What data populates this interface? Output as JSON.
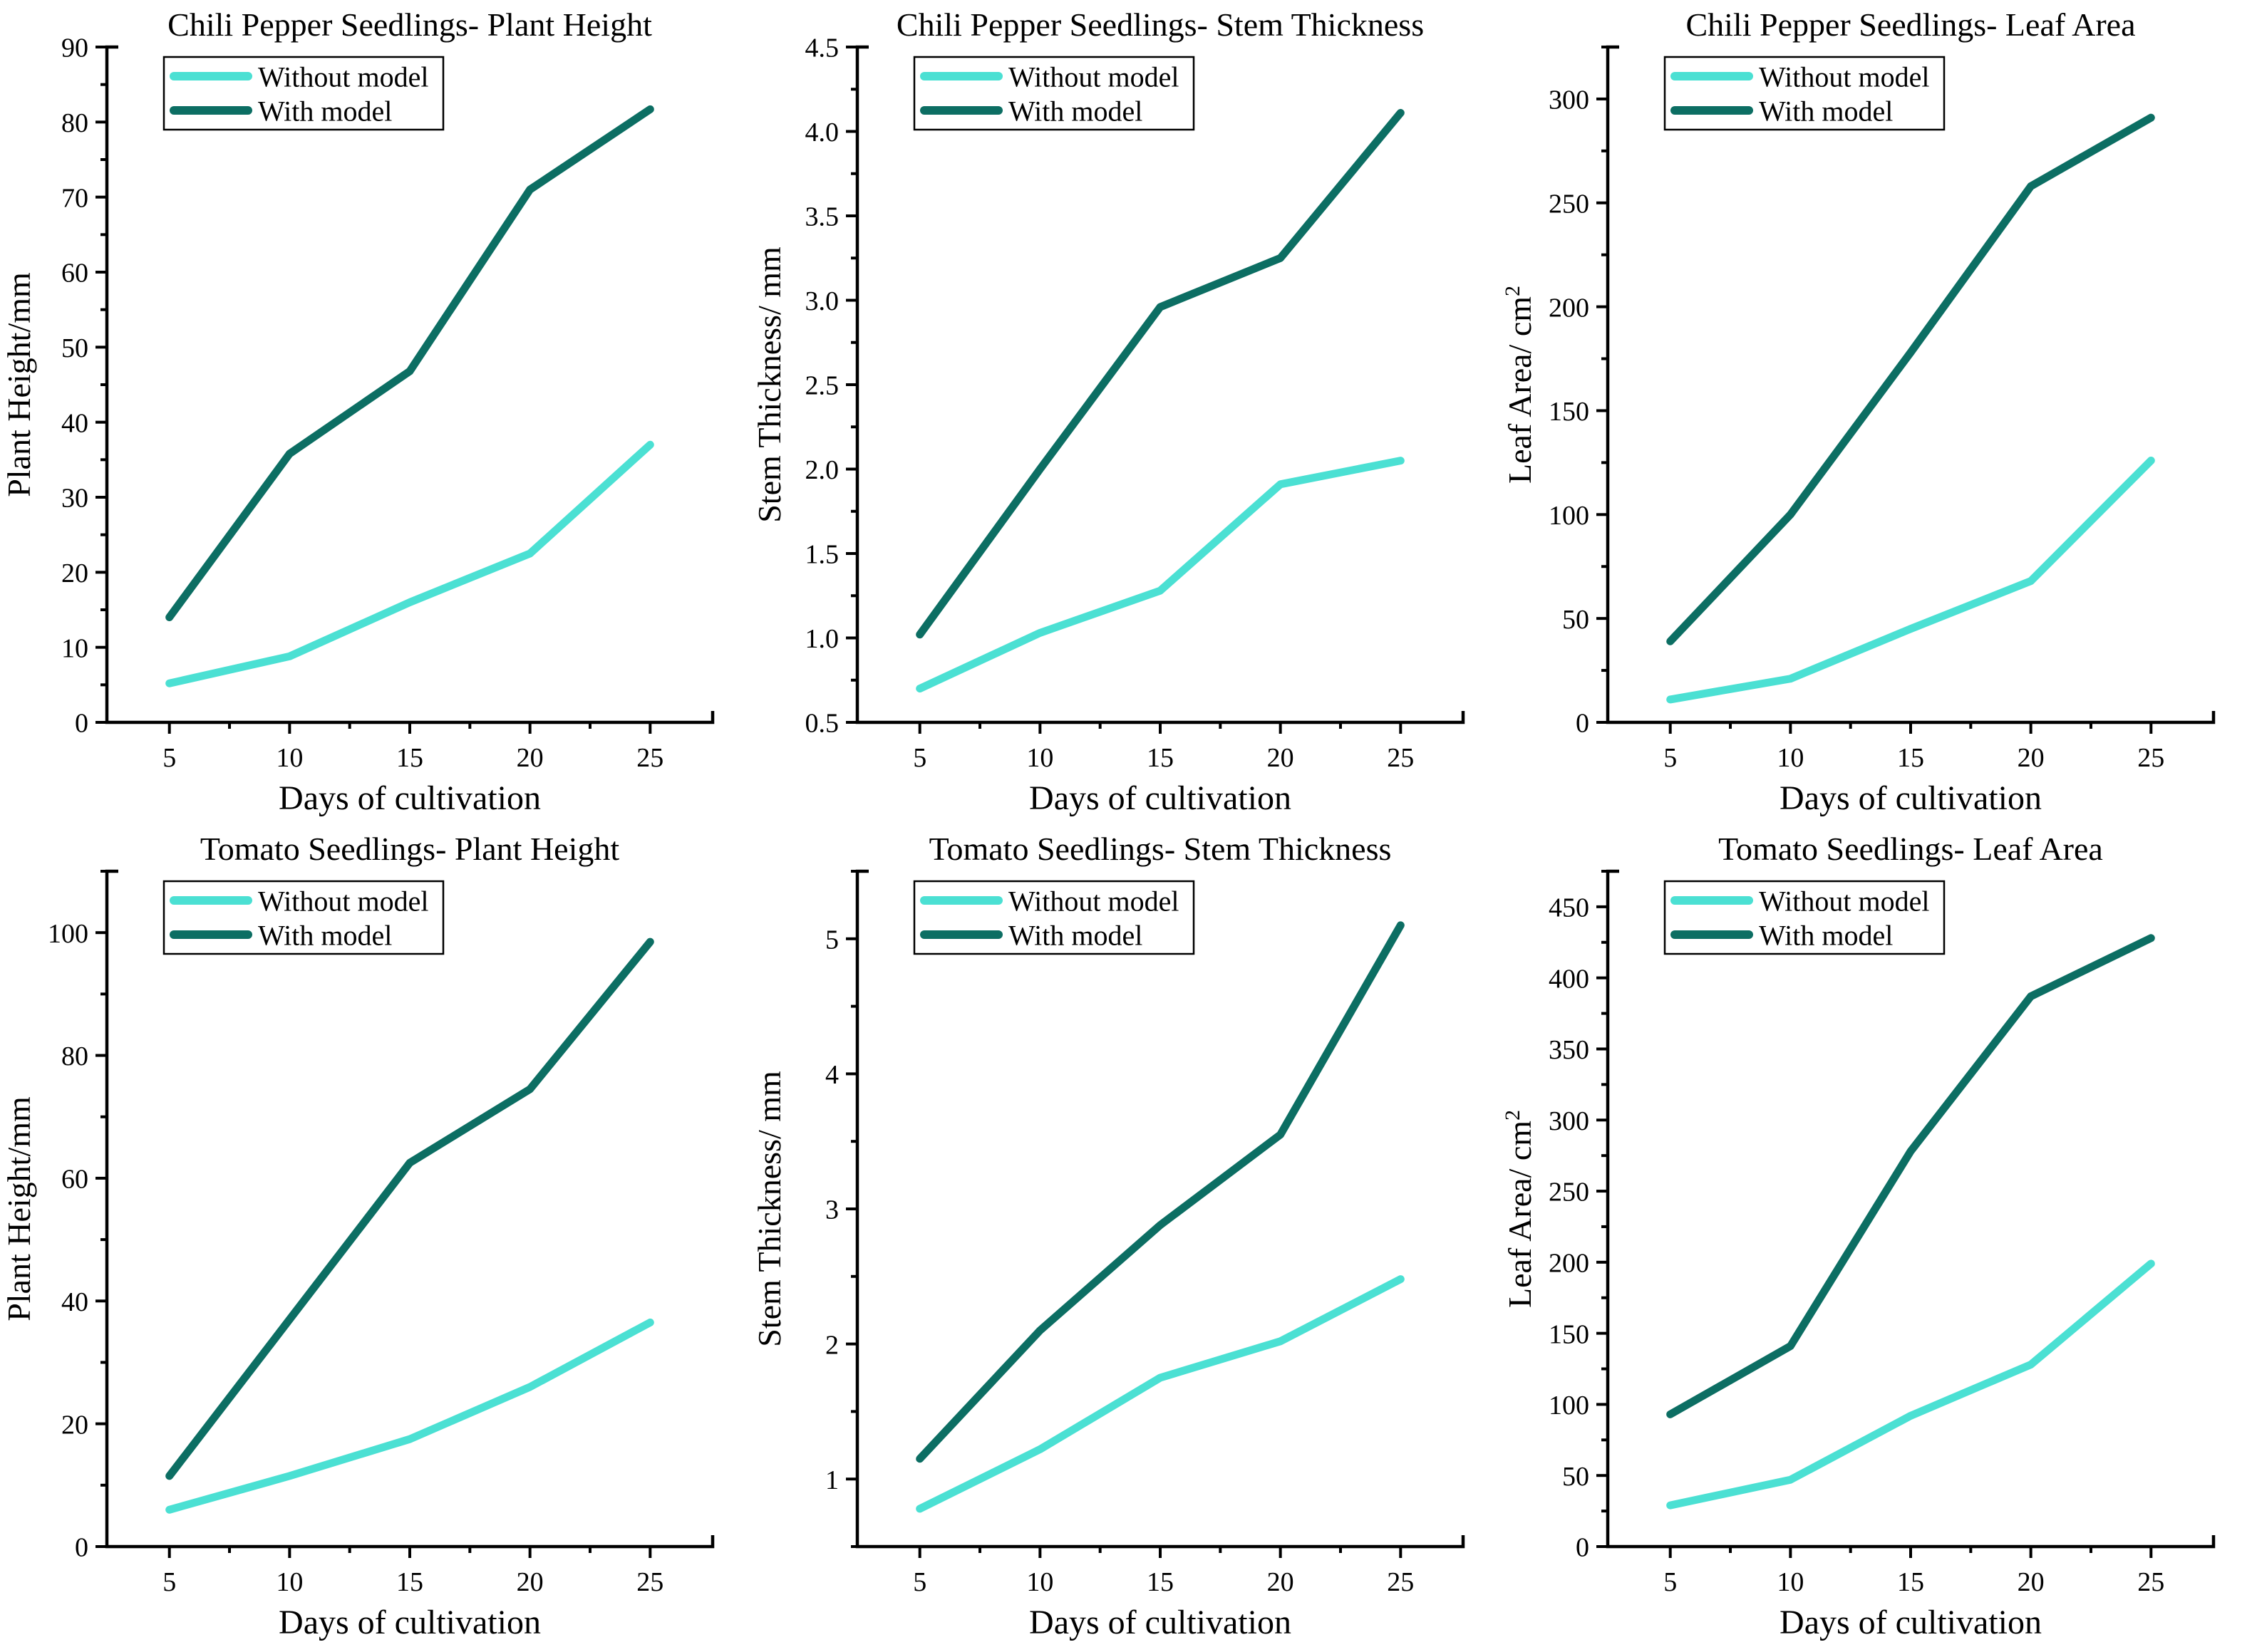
{
  "page": {
    "background": "#ffffff"
  },
  "colors": {
    "without_model": "#4BE0D3",
    "with_model": "#0C6E63",
    "axis": "#000000",
    "text": "#000000",
    "legend_border": "#000000",
    "legend_fill": "#ffffff"
  },
  "legend": {
    "labels": [
      "Without model",
      "With model"
    ],
    "position": "top-left"
  },
  "chart_data": [
    {
      "type": "line",
      "title": "Chili Pepper Seedlings- Plant Height",
      "xlabel": "Days of cultivation",
      "ylabel": "Plant Height/mm",
      "ylabel_superscript": "",
      "x": [
        5,
        10,
        15,
        20,
        25
      ],
      "series": [
        {
          "name": "Without model",
          "color_key": "without_model",
          "values": [
            5.2,
            8.8,
            16,
            22.5,
            37
          ]
        },
        {
          "name": "With model",
          "color_key": "with_model",
          "values": [
            14,
            35.8,
            46.8,
            71,
            81.7
          ]
        }
      ],
      "xlim": [
        2.4,
        27.6
      ],
      "xticks": [
        5,
        10,
        15,
        20,
        25
      ],
      "x_minor_ticks": [
        7.5,
        12.5,
        17.5,
        22.5
      ],
      "ylim": [
        0,
        90
      ],
      "yticks": [
        0,
        10,
        20,
        30,
        40,
        50,
        60,
        70,
        80,
        90
      ],
      "ytick_decimals": 0,
      "y_minor_step": 5,
      "grid": false,
      "legend_position": "top-left"
    },
    {
      "type": "line",
      "title": "Chili Pepper Seedlings- Stem Thickness",
      "xlabel": "Days of cultivation",
      "ylabel": "Stem Thickness/ mm",
      "ylabel_superscript": "",
      "x": [
        5,
        10,
        15,
        20,
        25
      ],
      "series": [
        {
          "name": "Without model",
          "color_key": "without_model",
          "values": [
            0.7,
            1.03,
            1.28,
            1.91,
            2.05
          ]
        },
        {
          "name": "With model",
          "color_key": "with_model",
          "values": [
            1.02,
            2.0,
            2.96,
            3.25,
            4.11
          ]
        }
      ],
      "xlim": [
        2.4,
        27.6
      ],
      "xticks": [
        5,
        10,
        15,
        20,
        25
      ],
      "x_minor_ticks": [
        7.5,
        12.5,
        17.5,
        22.5
      ],
      "ylim": [
        0.5,
        4.5
      ],
      "yticks": [
        0.5,
        1.0,
        1.5,
        2.0,
        2.5,
        3.0,
        3.5,
        4.0,
        4.5
      ],
      "ytick_decimals": 1,
      "y_minor_step": 0.25,
      "grid": false,
      "legend_position": "top-left"
    },
    {
      "type": "line",
      "title": "Chili Pepper Seedlings- Leaf Area",
      "xlabel": "Days of cultivation",
      "ylabel": "Leaf Area/ cm",
      "ylabel_superscript": "2",
      "x": [
        5,
        10,
        15,
        20,
        25
      ],
      "series": [
        {
          "name": "Without model",
          "color_key": "without_model",
          "values": [
            11,
            21,
            45,
            68,
            126
          ]
        },
        {
          "name": "With model",
          "color_key": "with_model",
          "values": [
            39,
            100,
            178,
            258,
            291
          ]
        }
      ],
      "xlim": [
        2.4,
        27.6
      ],
      "xticks": [
        5,
        10,
        15,
        20,
        25
      ],
      "x_minor_ticks": [
        7.5,
        12.5,
        17.5,
        22.5
      ],
      "ylim": [
        0,
        325
      ],
      "yticks": [
        0,
        50,
        100,
        150,
        200,
        250,
        300
      ],
      "ytick_decimals": 0,
      "y_minor_step": 25,
      "grid": false,
      "legend_position": "top-left"
    },
    {
      "type": "line",
      "title": "Tomato Seedlings- Plant Height",
      "xlabel": "Days of cultivation",
      "ylabel": "Plant Height/mm",
      "ylabel_superscript": "",
      "x": [
        5,
        10,
        15,
        20,
        25
      ],
      "series": [
        {
          "name": "Without model",
          "color_key": "without_model",
          "values": [
            6,
            11.5,
            17.5,
            26,
            36.5
          ]
        },
        {
          "name": "With model",
          "color_key": "with_model",
          "values": [
            11.5,
            37,
            62.5,
            74.5,
            98.5
          ]
        }
      ],
      "xlim": [
        2.4,
        27.6
      ],
      "xticks": [
        5,
        10,
        15,
        20,
        25
      ],
      "x_minor_ticks": [
        7.5,
        12.5,
        17.5,
        22.5
      ],
      "ylim": [
        0,
        110
      ],
      "yticks": [
        0,
        20,
        40,
        60,
        80,
        100
      ],
      "ytick_decimals": 0,
      "y_minor_step": 10,
      "grid": false,
      "legend_position": "top-left"
    },
    {
      "type": "line",
      "title": "Tomato Seedlings- Stem Thickness",
      "xlabel": "Days of cultivation",
      "ylabel": "Stem Thickness/ mm",
      "ylabel_superscript": "",
      "x": [
        5,
        10,
        15,
        20,
        25
      ],
      "series": [
        {
          "name": "Without model",
          "color_key": "without_model",
          "values": [
            0.78,
            1.22,
            1.75,
            2.02,
            2.48
          ]
        },
        {
          "name": "With model",
          "color_key": "with_model",
          "values": [
            1.15,
            2.1,
            2.88,
            3.55,
            5.1
          ]
        }
      ],
      "xlim": [
        2.4,
        27.6
      ],
      "xticks": [
        5,
        10,
        15,
        20,
        25
      ],
      "x_minor_ticks": [
        7.5,
        12.5,
        17.5,
        22.5
      ],
      "ylim": [
        0.5,
        5.5
      ],
      "yticks": [
        1,
        2,
        3,
        4,
        5
      ],
      "ytick_decimals": 0,
      "y_minor_step": 0.5,
      "grid": false,
      "legend_position": "top-left"
    },
    {
      "type": "line",
      "title": "Tomato Seedlings- Leaf Area",
      "xlabel": "Days of cultivation",
      "ylabel": "Leaf Area/ cm",
      "ylabel_superscript": "2",
      "x": [
        5,
        10,
        15,
        20,
        25
      ],
      "series": [
        {
          "name": "Without model",
          "color_key": "without_model",
          "values": [
            29,
            47,
            92,
            128,
            199
          ]
        },
        {
          "name": "With model",
          "color_key": "with_model",
          "values": [
            93,
            141,
            278,
            387,
            428
          ]
        }
      ],
      "xlim": [
        2.4,
        27.6
      ],
      "xticks": [
        5,
        10,
        15,
        20,
        25
      ],
      "x_minor_ticks": [
        7.5,
        12.5,
        17.5,
        22.5
      ],
      "ylim": [
        0,
        475
      ],
      "yticks": [
        0,
        50,
        100,
        150,
        200,
        250,
        300,
        350,
        400,
        450
      ],
      "ytick_decimals": 0,
      "y_minor_step": 25,
      "grid": false,
      "legend_position": "top-left"
    }
  ]
}
